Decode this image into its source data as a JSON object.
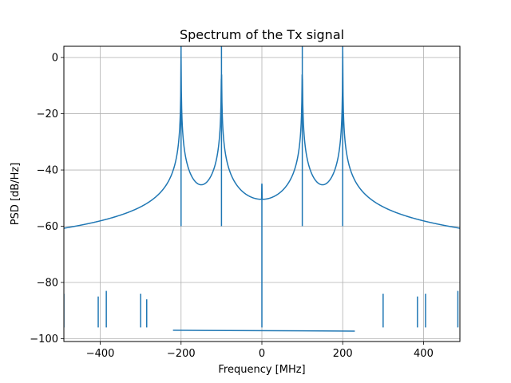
{
  "chart_data": {
    "type": "line",
    "title": "Spectrum of the Tx signal",
    "xlabel": "Frequency [MHz]",
    "ylabel": "PSD [dB/Hz]",
    "xlim": [
      -490,
      490
    ],
    "ylim": [
      -101,
      4
    ],
    "xticks": [
      -400,
      -200,
      0,
      200,
      400
    ],
    "xtick_labels": [
      "−400",
      "−200",
      "0",
      "200",
      "400"
    ],
    "yticks": [
      0,
      -20,
      -40,
      -60,
      -80,
      -100
    ],
    "ytick_labels": [
      "0",
      "−20",
      "−40",
      "−60",
      "−80",
      "−100"
    ],
    "grid": true,
    "color": "#1f77b4",
    "noise_floor_db": -97,
    "peaks": [
      {
        "x": -200,
        "y": 4
      },
      {
        "x": -100,
        "y": 4
      },
      {
        "x": 100,
        "y": 4
      },
      {
        "x": 200,
        "y": 4
      }
    ],
    "spurs": [
      {
        "x": -490,
        "y": -84
      },
      {
        "x": -405,
        "y": -85
      },
      {
        "x": -385,
        "y": -83
      },
      {
        "x": -300,
        "y": -84
      },
      {
        "x": -285,
        "y": -86
      },
      {
        "x": 0,
        "y": -45
      },
      {
        "x": 300,
        "y": -84
      },
      {
        "x": 385,
        "y": -85
      },
      {
        "x": 405,
        "y": -84
      },
      {
        "x": 485,
        "y": -83
      }
    ]
  }
}
